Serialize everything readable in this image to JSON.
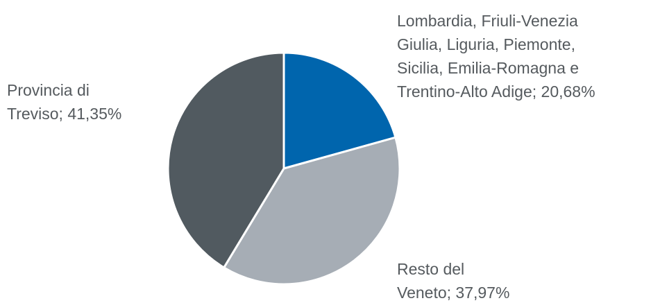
{
  "chart_data": {
    "type": "pie",
    "labels": [
      [
        "Lombardia, Friuli-Venezia",
        "Giulia, Liguria, Piemonte,",
        "Sicilia, Emilia-Romagna e",
        "Trentino-Alto Adige; 20,68%"
      ],
      [
        "Resto del",
        "Veneto; 37,97%"
      ],
      [
        "Provincia di",
        "Treviso; 41,35%"
      ]
    ],
    "values": [
      20.68,
      37.97,
      41.35
    ],
    "colors": [
      "#0065ad",
      "#a6adb5",
      "#515a60"
    ]
  }
}
